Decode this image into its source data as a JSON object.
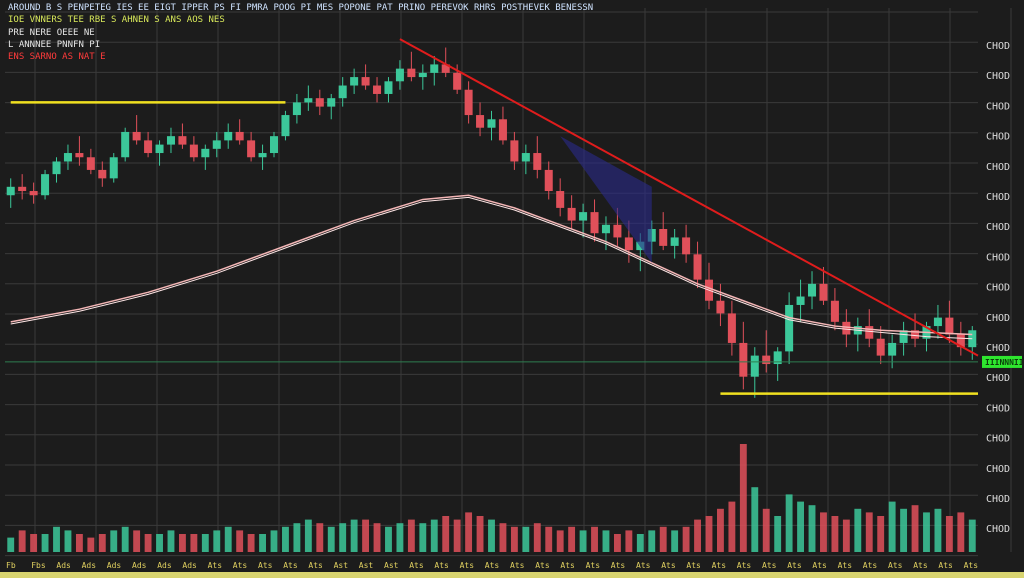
{
  "header": {
    "line1": "AROUND B S PENPETEG IES EE EIGT IPPER PS FI PMRA POOG PI MES POPONE PAT PRINO PEREVOK RHRS POSTHEVEK BENESSN",
    "line2": "IOE VNNERS TEE RBE S AHNEN S ANS AOS NES",
    "line3": "L ANNNEE PNNFN PI",
    "line4": "ENS SARNO AS NAT E",
    "line5": "PRE NERE OEEE NE"
  },
  "colors": {
    "background": "#1c1c1c",
    "grid": "#3a3a3a",
    "up_candle": "#3cc89a",
    "down_candle": "#e0505a",
    "ma_line": "#f3b6b6",
    "ma_line2": "#ffe6e6",
    "trend_line": "#e01c1c",
    "support_line": "#f0e020",
    "current_price_line": "#2e7d4f",
    "price_tag": "#2ee62e",
    "fill_area": "#2a2a8a"
  },
  "chart_data": {
    "type": "candlestick",
    "title": "",
    "xlabel": "",
    "ylabel": "",
    "y_tick_labels": [
      "CHOD",
      "CHOD",
      "CHOD",
      "CHOD",
      "CHOD",
      "CHOD",
      "CHOD",
      "CHOD",
      "CHOD",
      "CHOD",
      "CHOD",
      "CHOD",
      "CHOD",
      "CHOD",
      "CHOD",
      "CHOD",
      "CHOD"
    ],
    "x_tick_labels": [
      "Fb",
      "Fbs",
      "Ads",
      "Ads",
      "Ads",
      "Ads",
      "Ads",
      "Ads",
      "Ats",
      "Ats",
      "Ats",
      "Ats",
      "Ats",
      "Ast",
      "Ast",
      "Ast",
      "Ats",
      "Ats",
      "Ats",
      "Ats",
      "Ats",
      "Ats",
      "Ats",
      "Ats",
      "Ats",
      "Ats",
      "Ats",
      "Ats",
      "Ats",
      "Ats",
      "Ats",
      "Ats",
      "Ats",
      "Ats",
      "Ats",
      "Ats",
      "Ats",
      "Ats",
      "Ats"
    ],
    "current_price_label": "IIINNNII",
    "ylim": [
      0,
      100
    ],
    "candles": [
      [
        58,
        62,
        55,
        60
      ],
      [
        60,
        63,
        57,
        59
      ],
      [
        59,
        61,
        56,
        58
      ],
      [
        58,
        64,
        57,
        63
      ],
      [
        63,
        67,
        61,
        66
      ],
      [
        66,
        70,
        64,
        68
      ],
      [
        68,
        72,
        65,
        67
      ],
      [
        67,
        69,
        63,
        64
      ],
      [
        64,
        66,
        60,
        62
      ],
      [
        62,
        68,
        61,
        67
      ],
      [
        67,
        74,
        66,
        73
      ],
      [
        73,
        77,
        70,
        71
      ],
      [
        71,
        73,
        67,
        68
      ],
      [
        68,
        71,
        65,
        70
      ],
      [
        70,
        74,
        68,
        72
      ],
      [
        72,
        75,
        69,
        70
      ],
      [
        70,
        72,
        66,
        67
      ],
      [
        67,
        70,
        64,
        69
      ],
      [
        69,
        73,
        67,
        71
      ],
      [
        71,
        75,
        69,
        73
      ],
      [
        73,
        76,
        70,
        71
      ],
      [
        71,
        73,
        66,
        67
      ],
      [
        67,
        70,
        64,
        68
      ],
      [
        68,
        73,
        67,
        72
      ],
      [
        72,
        78,
        71,
        77
      ],
      [
        77,
        82,
        75,
        80
      ],
      [
        80,
        84,
        78,
        81
      ],
      [
        81,
        83,
        77,
        79
      ],
      [
        79,
        82,
        76,
        81
      ],
      [
        81,
        86,
        79,
        84
      ],
      [
        84,
        88,
        82,
        86
      ],
      [
        86,
        89,
        83,
        84
      ],
      [
        84,
        86,
        80,
        82
      ],
      [
        82,
        86,
        80,
        85
      ],
      [
        85,
        90,
        83,
        88
      ],
      [
        88,
        92,
        85,
        86
      ],
      [
        86,
        89,
        83,
        87
      ],
      [
        87,
        91,
        84,
        89
      ],
      [
        89,
        93,
        86,
        87
      ],
      [
        87,
        89,
        82,
        83
      ],
      [
        83,
        85,
        75,
        77
      ],
      [
        77,
        80,
        72,
        74
      ],
      [
        74,
        78,
        71,
        76
      ],
      [
        76,
        79,
        70,
        71
      ],
      [
        71,
        73,
        64,
        66
      ],
      [
        66,
        70,
        63,
        68
      ],
      [
        68,
        72,
        62,
        64
      ],
      [
        64,
        66,
        57,
        59
      ],
      [
        59,
        62,
        53,
        55
      ],
      [
        55,
        58,
        50,
        52
      ],
      [
        52,
        56,
        48,
        54
      ],
      [
        54,
        57,
        47,
        49
      ],
      [
        49,
        53,
        45,
        51
      ],
      [
        51,
        55,
        46,
        48
      ],
      [
        48,
        52,
        42,
        45
      ],
      [
        45,
        49,
        40,
        47
      ],
      [
        47,
        52,
        44,
        50
      ],
      [
        50,
        54,
        45,
        46
      ],
      [
        46,
        50,
        43,
        48
      ],
      [
        48,
        51,
        42,
        44
      ],
      [
        44,
        47,
        36,
        38
      ],
      [
        38,
        42,
        31,
        33
      ],
      [
        33,
        37,
        27,
        30
      ],
      [
        30,
        33,
        20,
        23
      ],
      [
        23,
        28,
        12,
        15
      ],
      [
        15,
        22,
        10,
        20
      ],
      [
        20,
        26,
        16,
        18
      ],
      [
        18,
        22,
        14,
        21
      ],
      [
        21,
        35,
        18,
        32
      ],
      [
        32,
        38,
        28,
        34
      ],
      [
        34,
        40,
        31,
        37
      ],
      [
        37,
        41,
        32,
        33
      ],
      [
        33,
        36,
        26,
        28
      ],
      [
        28,
        31,
        22,
        25
      ],
      [
        25,
        29,
        21,
        27
      ],
      [
        27,
        31,
        22,
        24
      ],
      [
        24,
        27,
        18,
        20
      ],
      [
        20,
        25,
        17,
        23
      ],
      [
        23,
        28,
        20,
        26
      ],
      [
        26,
        30,
        22,
        24
      ],
      [
        24,
        28,
        21,
        27
      ],
      [
        27,
        32,
        24,
        29
      ],
      [
        29,
        33,
        23,
        25
      ],
      [
        25,
        28,
        20,
        22
      ],
      [
        22,
        27,
        19,
        26
      ]
    ],
    "moving_average": [
      [
        0,
        28
      ],
      [
        6,
        31
      ],
      [
        12,
        35
      ],
      [
        18,
        40
      ],
      [
        24,
        46
      ],
      [
        30,
        52
      ],
      [
        36,
        57
      ],
      [
        40,
        58
      ],
      [
        44,
        55
      ],
      [
        48,
        51
      ],
      [
        52,
        47
      ],
      [
        56,
        42
      ],
      [
        60,
        37
      ],
      [
        64,
        33
      ],
      [
        68,
        29
      ],
      [
        72,
        27
      ],
      [
        76,
        26
      ],
      [
        80,
        25.5
      ],
      [
        84,
        25
      ]
    ],
    "moving_average_2": [
      [
        0,
        27.5
      ],
      [
        6,
        30.5
      ],
      [
        12,
        34.5
      ],
      [
        18,
        39.5
      ],
      [
        24,
        45.5
      ],
      [
        30,
        51.5
      ],
      [
        36,
        56.5
      ],
      [
        40,
        57.5
      ],
      [
        44,
        54.5
      ],
      [
        48,
        50.5
      ],
      [
        52,
        46.5
      ],
      [
        56,
        41.5
      ],
      [
        60,
        36.5
      ],
      [
        64,
        32.5
      ],
      [
        68,
        28.5
      ],
      [
        72,
        26.5
      ],
      [
        76,
        25.5
      ],
      [
        80,
        24.5
      ],
      [
        84,
        24
      ]
    ],
    "trend_line": [
      [
        34,
        95
      ],
      [
        86,
        20
      ]
    ],
    "support_line_1": {
      "x_start": 0,
      "x_end": 24,
      "y": 80
    },
    "support_line_2": {
      "x_start": 62,
      "x_end": 86,
      "y": 11
    },
    "current_price": 18.5,
    "volumes": [
      4,
      6,
      5,
      5,
      7,
      6,
      5,
      4,
      5,
      6,
      7,
      6,
      5,
      5,
      6,
      5,
      5,
      5,
      6,
      7,
      6,
      5,
      5,
      6,
      7,
      8,
      9,
      8,
      7,
      8,
      9,
      9,
      8,
      7,
      8,
      9,
      8,
      9,
      10,
      9,
      11,
      10,
      9,
      8,
      7,
      7,
      8,
      7,
      6,
      7,
      6,
      7,
      6,
      5,
      6,
      5,
      6,
      7,
      6,
      7,
      9,
      10,
      12,
      14,
      30,
      18,
      12,
      10,
      16,
      14,
      13,
      11,
      10,
      9,
      12,
      11,
      10,
      14,
      12,
      13,
      11,
      12,
      10,
      11,
      9
    ]
  }
}
